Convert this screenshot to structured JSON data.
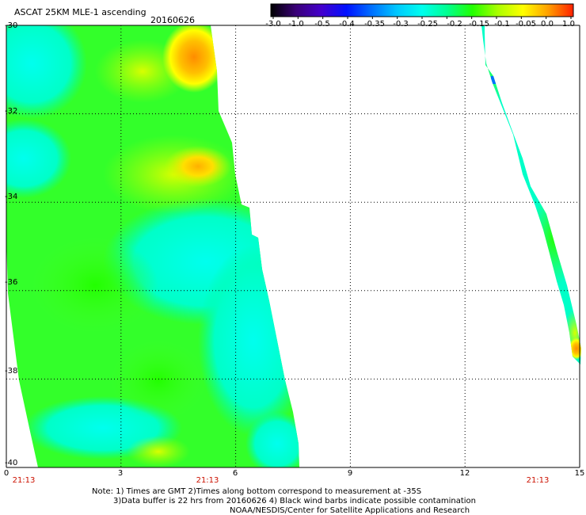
{
  "header": {
    "title": "ASCAT 25KM MLE-1 ascending",
    "date": "20160626"
  },
  "colorbar": {
    "labels": [
      "-3.0",
      "-1.0",
      "-0.5",
      "-0.4",
      "-0.35",
      "-0.3",
      "-0.25",
      "-0.2",
      "-0.15",
      "-0.1",
      "-0.05",
      "0.0",
      "1.0"
    ],
    "colors": [
      "#000000",
      "#3a0078",
      "#4400cc",
      "#0010ff",
      "#0070ff",
      "#00c8ff",
      "#00ffee",
      "#00ff90",
      "#22ff00",
      "#aaff00",
      "#ffff00",
      "#ffa000",
      "#ff2000"
    ]
  },
  "map": {
    "lat_labels": [
      "-30",
      "-32",
      "-34",
      "-36",
      "-38",
      "-40"
    ],
    "lon_labels": [
      "0",
      "3",
      "6",
      "9",
      "12",
      "15"
    ],
    "time_labels": [
      "21:13",
      "21:13",
      "21:13"
    ]
  },
  "notes": {
    "line1": "Note: 1) Times are GMT 2)Times along bottom correspond to measurement at -35S",
    "line2": "3)Data buffer is 22 hrs from 20160626 4) Black wind barbs indicate possible contamination",
    "line3": "NOAA/NESDIS/Center for Satellite Applications and Research"
  }
}
